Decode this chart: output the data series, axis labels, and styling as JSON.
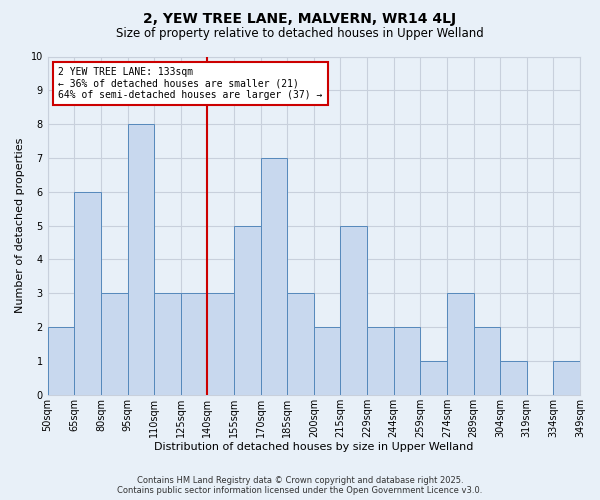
{
  "title": "2, YEW TREE LANE, MALVERN, WR14 4LJ",
  "subtitle": "Size of property relative to detached houses in Upper Welland",
  "xlabel": "Distribution of detached houses by size in Upper Welland",
  "ylabel": "Number of detached properties",
  "bar_labels": [
    "50sqm",
    "65sqm",
    "80sqm",
    "95sqm",
    "110sqm",
    "125sqm",
    "140sqm",
    "155sqm",
    "170sqm",
    "185sqm",
    "200sqm",
    "215sqm",
    "229sqm",
    "244sqm",
    "259sqm",
    "274sqm",
    "289sqm",
    "304sqm",
    "319sqm",
    "334sqm",
    "349sqm"
  ],
  "bar_values": [
    2,
    6,
    3,
    8,
    3,
    3,
    3,
    5,
    7,
    3,
    2,
    5,
    2,
    2,
    1,
    3,
    2,
    1,
    0,
    1
  ],
  "bar_color": "#c8d8ee",
  "bar_edge_color": "#5588bb",
  "vline_pos": 6,
  "vline_color": "#cc0000",
  "ylim": [
    0,
    10
  ],
  "yticks": [
    0,
    1,
    2,
    3,
    4,
    5,
    6,
    7,
    8,
    9,
    10
  ],
  "annotation_text": "2 YEW TREE LANE: 133sqm\n← 36% of detached houses are smaller (21)\n64% of semi-detached houses are larger (37) →",
  "annotation_box_color": "#ffffff",
  "annotation_box_edge": "#cc0000",
  "footer_line1": "Contains HM Land Registry data © Crown copyright and database right 2025.",
  "footer_line2": "Contains public sector information licensed under the Open Government Licence v3.0.",
  "bg_color": "#e8f0f8",
  "grid_color": "#c8d0dc",
  "title_fontsize": 10,
  "subtitle_fontsize": 8.5,
  "axis_label_fontsize": 8,
  "tick_fontsize": 7,
  "annotation_fontsize": 7,
  "footer_fontsize": 6
}
